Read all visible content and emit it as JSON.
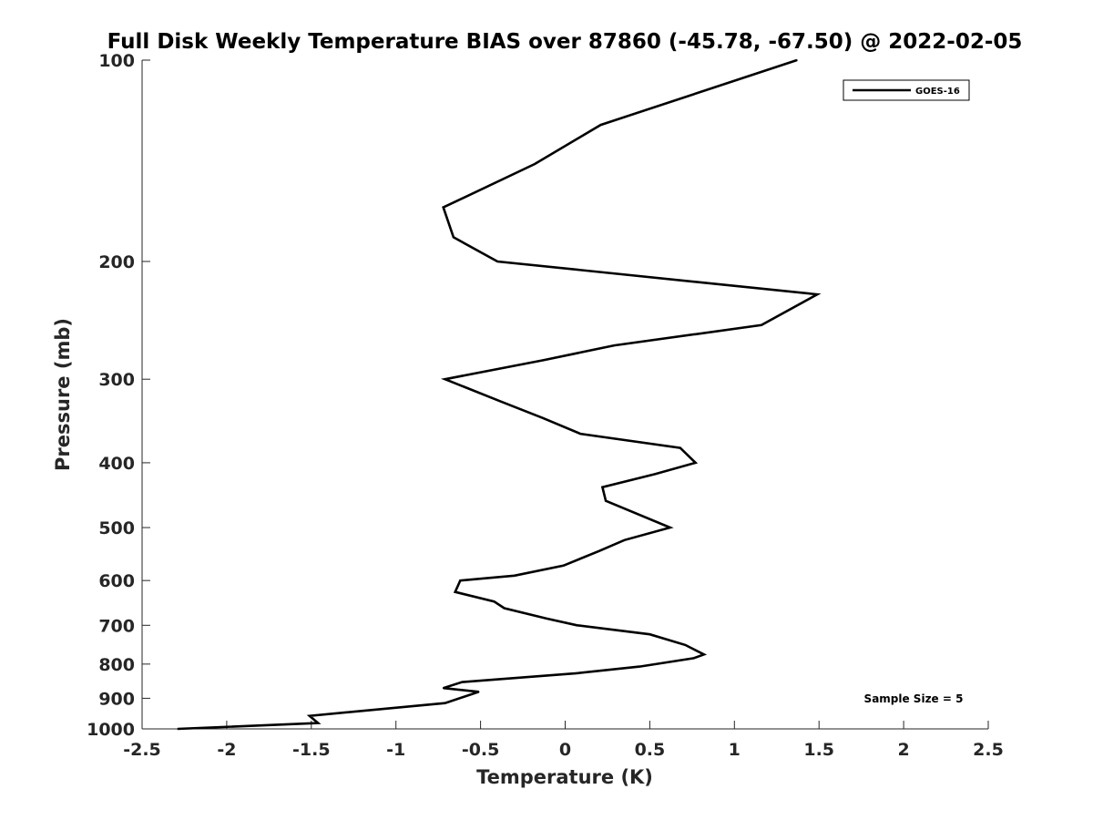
{
  "chart_data": {
    "type": "line",
    "title": "Full Disk Weekly Temperature BIAS over 87860 (-45.78, -67.50) @ 2022-02-05",
    "xlabel": "Temperature (K)",
    "ylabel": "Pressure (mb)",
    "xlim": [
      -2.5,
      2.5
    ],
    "ylim": [
      100,
      1000
    ],
    "y_scale": "log",
    "y_reversed": true,
    "x_ticks": [
      "-2.5",
      "-2",
      "-1.5",
      "-1",
      "-0.5",
      "0",
      "0.5",
      "1",
      "1.5",
      "2",
      "2.5"
    ],
    "y_ticks": [
      "100",
      "200",
      "300",
      "400",
      "500",
      "600",
      "700",
      "800",
      "900",
      "1000"
    ],
    "grid": false,
    "legend_position": "top-right",
    "annotation": "Sample Size = 5",
    "series": [
      {
        "name": "GOES-16",
        "color": "#000000",
        "points": [
          [
            1.37,
            100
          ],
          [
            0.21,
            125
          ],
          [
            -0.18,
            143
          ],
          [
            -0.72,
            166
          ],
          [
            -0.66,
            184
          ],
          [
            -0.4,
            200
          ],
          [
            1.49,
            224
          ],
          [
            1.16,
            249
          ],
          [
            0.29,
            267
          ],
          [
            -0.13,
            281
          ],
          [
            -0.71,
            300
          ],
          [
            -0.38,
            324
          ],
          [
            -0.13,
            343
          ],
          [
            0.09,
            362
          ],
          [
            0.68,
            380
          ],
          [
            0.77,
            400
          ],
          [
            0.53,
            416
          ],
          [
            0.22,
            435
          ],
          [
            0.24,
            456
          ],
          [
            0.62,
            500
          ],
          [
            0.35,
            522
          ],
          [
            0.2,
            542
          ],
          [
            -0.01,
            570
          ],
          [
            -0.3,
            590
          ],
          [
            -0.62,
            600
          ],
          [
            -0.65,
            624
          ],
          [
            -0.42,
            645
          ],
          [
            -0.36,
            660
          ],
          [
            -0.11,
            684
          ],
          [
            0.07,
            700
          ],
          [
            0.5,
            722
          ],
          [
            0.71,
            749
          ],
          [
            0.82,
            774
          ],
          [
            0.76,
            784
          ],
          [
            0.44,
            807
          ],
          [
            0.06,
            826
          ],
          [
            -0.61,
            851
          ],
          [
            -0.72,
            869
          ],
          [
            -0.51,
            880
          ],
          [
            -0.71,
            915
          ],
          [
            -1.51,
            956
          ],
          [
            -1.46,
            980
          ],
          [
            -2.29,
            1000
          ]
        ]
      }
    ]
  }
}
